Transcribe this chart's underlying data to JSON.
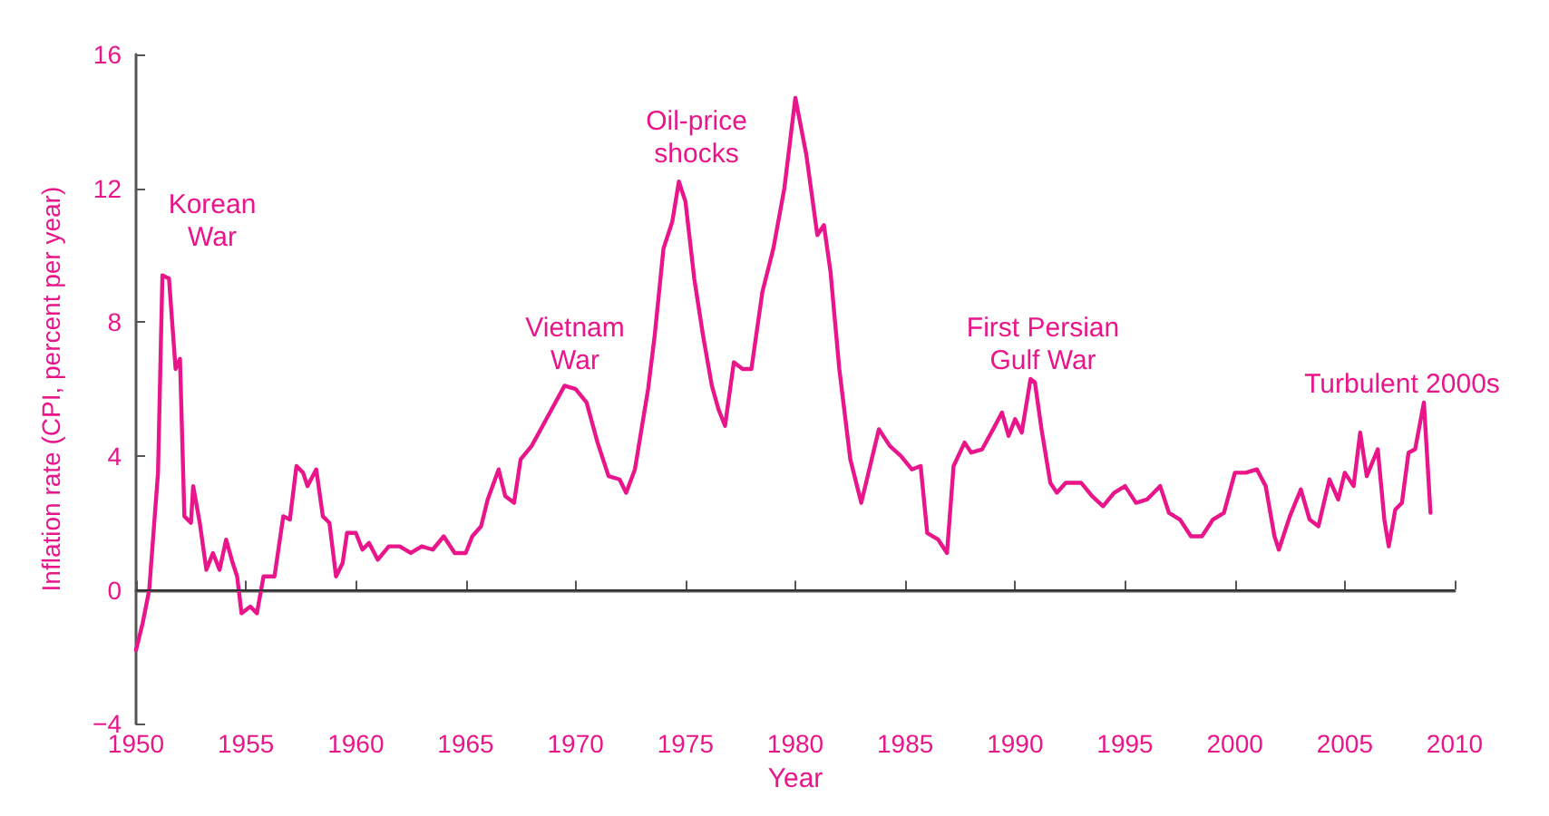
{
  "chart_data": {
    "type": "line",
    "xlabel": "Year",
    "ylabel": "Inflation rate (CPI, percent per year)",
    "xlim": [
      1950,
      2010
    ],
    "xticks": [
      1950,
      1955,
      1960,
      1965,
      1970,
      1975,
      1980,
      1985,
      1990,
      1995,
      2000,
      2005,
      2010
    ],
    "ylim": [
      -4,
      16
    ],
    "yticks": [
      -4,
      0,
      4,
      8,
      12,
      16
    ],
    "grid": false,
    "marker": "none",
    "line_style": "solid",
    "ref_lines": [
      {
        "axis": "y",
        "value": 0,
        "label": null,
        "color": "#333333"
      }
    ],
    "annotations": [
      "Korean\nWar",
      "Vietnam\nWar",
      "Oil-price\nshocks",
      "First Persian\nGulf War",
      "Turbulent 2000s"
    ],
    "series": [
      {
        "color": "#e8168a",
        "x": [
          1950.0,
          1950.3,
          1950.6,
          1951.0,
          1951.2,
          1951.5,
          1951.8,
          1952.0,
          1952.2,
          1952.5,
          1952.6,
          1952.9,
          1953.2,
          1953.5,
          1953.8,
          1954.1,
          1954.4,
          1954.6,
          1954.8,
          1955.2,
          1955.5,
          1955.8,
          1956.3,
          1956.7,
          1957.0,
          1957.3,
          1957.6,
          1957.8,
          1958.2,
          1958.5,
          1958.8,
          1959.1,
          1959.4,
          1959.6,
          1960.0,
          1960.3,
          1960.6,
          1961.0,
          1961.5,
          1962.0,
          1962.5,
          1963.0,
          1963.5,
          1964.0,
          1964.5,
          1965.0,
          1965.3,
          1965.7,
          1966.0,
          1966.5,
          1966.8,
          1967.2,
          1967.5,
          1968.0,
          1968.5,
          1969.0,
          1969.5,
          1970.0,
          1970.5,
          1971.0,
          1971.5,
          1972.0,
          1972.3,
          1972.7,
          1973.0,
          1973.3,
          1973.6,
          1974.0,
          1974.4,
          1974.7,
          1975.0,
          1975.4,
          1975.8,
          1976.2,
          1976.5,
          1976.8,
          1977.2,
          1977.6,
          1978.0,
          1978.5,
          1979.0,
          1979.5,
          1980.0,
          1980.5,
          1981.0,
          1981.3,
          1981.6,
          1982.0,
          1982.5,
          1983.0,
          1983.4,
          1983.8,
          1984.3,
          1984.8,
          1985.3,
          1985.7,
          1986.0,
          1986.5,
          1986.9,
          1987.2,
          1987.7,
          1988.0,
          1988.5,
          1989.0,
          1989.4,
          1989.7,
          1990.0,
          1990.3,
          1990.7,
          1990.9,
          1991.2,
          1991.6,
          1991.9,
          1992.3,
          1993.0,
          1993.5,
          1994.0,
          1994.5,
          1995.0,
          1995.5,
          1996.0,
          1996.6,
          1997.0,
          1997.5,
          1998.0,
          1998.5,
          1999.0,
          1999.5,
          2000.0,
          2000.5,
          2001.0,
          2001.4,
          2001.8,
          2002.0,
          2002.5,
          2003.0,
          2003.4,
          2003.8,
          2004.3,
          2004.7,
          2005.0,
          2005.4,
          2005.7,
          2006.0,
          2006.5,
          2006.8,
          2007.0,
          2007.3,
          2007.6,
          2007.9,
          2008.2,
          2008.6,
          2008.9
        ],
        "values": [
          -1.8,
          -1.0,
          0,
          3.5,
          9.4,
          9.3,
          6.6,
          6.9,
          2.2,
          2.0,
          3.1,
          2.0,
          0.6,
          1.1,
          0.6,
          1.5,
          0.8,
          0.4,
          -0.7,
          -0.5,
          -0.7,
          0.4,
          0.4,
          2.2,
          2.1,
          3.7,
          3.5,
          3.1,
          3.6,
          2.2,
          2.0,
          0.4,
          0.8,
          1.7,
          1.7,
          1.2,
          1.4,
          0.9,
          1.3,
          1.3,
          1.1,
          1.3,
          1.2,
          1.6,
          1.1,
          1.1,
          1.6,
          1.9,
          2.7,
          3.6,
          2.8,
          2.6,
          3.9,
          4.3,
          4.9,
          5.5,
          6.1,
          6.0,
          5.6,
          4.4,
          3.4,
          3.3,
          2.9,
          3.6,
          4.8,
          6.0,
          7.6,
          10.2,
          11.0,
          12.2,
          11.6,
          9.3,
          7.6,
          6.1,
          5.4,
          4.9,
          6.8,
          6.6,
          6.6,
          8.9,
          10.2,
          12.0,
          14.7,
          13.0,
          10.6,
          10.9,
          9.5,
          6.6,
          3.9,
          2.6,
          3.7,
          4.8,
          4.3,
          4.0,
          3.6,
          3.7,
          1.7,
          1.5,
          1.1,
          3.7,
          4.4,
          4.1,
          4.2,
          4.8,
          5.3,
          4.6,
          5.1,
          4.7,
          6.3,
          6.2,
          4.8,
          3.2,
          2.9,
          3.2,
          3.2,
          2.8,
          2.5,
          2.9,
          3.1,
          2.6,
          2.7,
          3.1,
          2.3,
          2.1,
          1.6,
          1.6,
          2.1,
          2.3,
          3.5,
          3.5,
          3.6,
          3.1,
          1.6,
          1.2,
          2.2,
          3.0,
          2.1,
          1.9,
          3.3,
          2.7,
          3.5,
          3.1,
          4.7,
          3.4,
          4.2,
          2.1,
          1.3,
          2.4,
          2.6,
          4.1,
          4.2,
          5.6,
          2.3
        ]
      }
    ]
  }
}
